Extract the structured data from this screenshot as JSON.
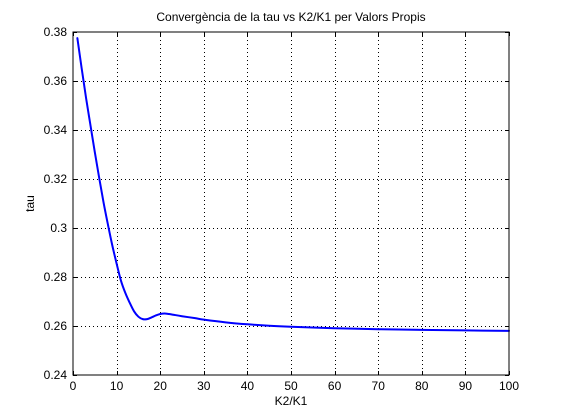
{
  "chart_data": {
    "type": "line",
    "title": "Convergència de la tau vs K2/K1 per Valors Propis",
    "xlabel": "K2/K1",
    "ylabel": "tau",
    "xlim": [
      0,
      100
    ],
    "ylim": [
      0.24,
      0.38
    ],
    "xticks": [
      0,
      10,
      20,
      30,
      40,
      50,
      60,
      70,
      80,
      90,
      100
    ],
    "yticks": [
      0.24,
      0.26,
      0.28,
      0.3,
      0.32,
      0.34,
      0.36,
      0.38
    ],
    "xtick_labels": [
      "0",
      "10",
      "20",
      "30",
      "40",
      "50",
      "60",
      "70",
      "80",
      "90",
      "100"
    ],
    "ytick_labels": [
      "0.24",
      "0.26",
      "0.28",
      "0.3",
      "0.32",
      "0.34",
      "0.36",
      "0.38"
    ],
    "grid": true,
    "grid_style": "dotted",
    "series": [
      {
        "color": "#0000ff",
        "x": [
          1,
          2,
          3,
          4,
          5,
          6,
          7,
          8,
          9,
          10,
          11,
          12,
          13,
          14,
          15,
          16,
          17,
          18,
          19,
          20,
          21,
          22,
          23,
          25,
          28,
          30,
          35,
          40,
          45,
          50,
          60,
          70,
          80,
          90,
          100
        ],
        "y": [
          0.3775,
          0.365,
          0.353,
          0.342,
          0.331,
          0.3205,
          0.3105,
          0.3015,
          0.293,
          0.2855,
          0.2785,
          0.2735,
          0.2695,
          0.266,
          0.2638,
          0.2628,
          0.2628,
          0.2635,
          0.2643,
          0.2649,
          0.2651,
          0.2649,
          0.2646,
          0.264,
          0.2632,
          0.2626,
          0.2615,
          0.2607,
          0.2601,
          0.2597,
          0.2591,
          0.2587,
          0.2584,
          0.2582,
          0.258
        ]
      }
    ]
  }
}
